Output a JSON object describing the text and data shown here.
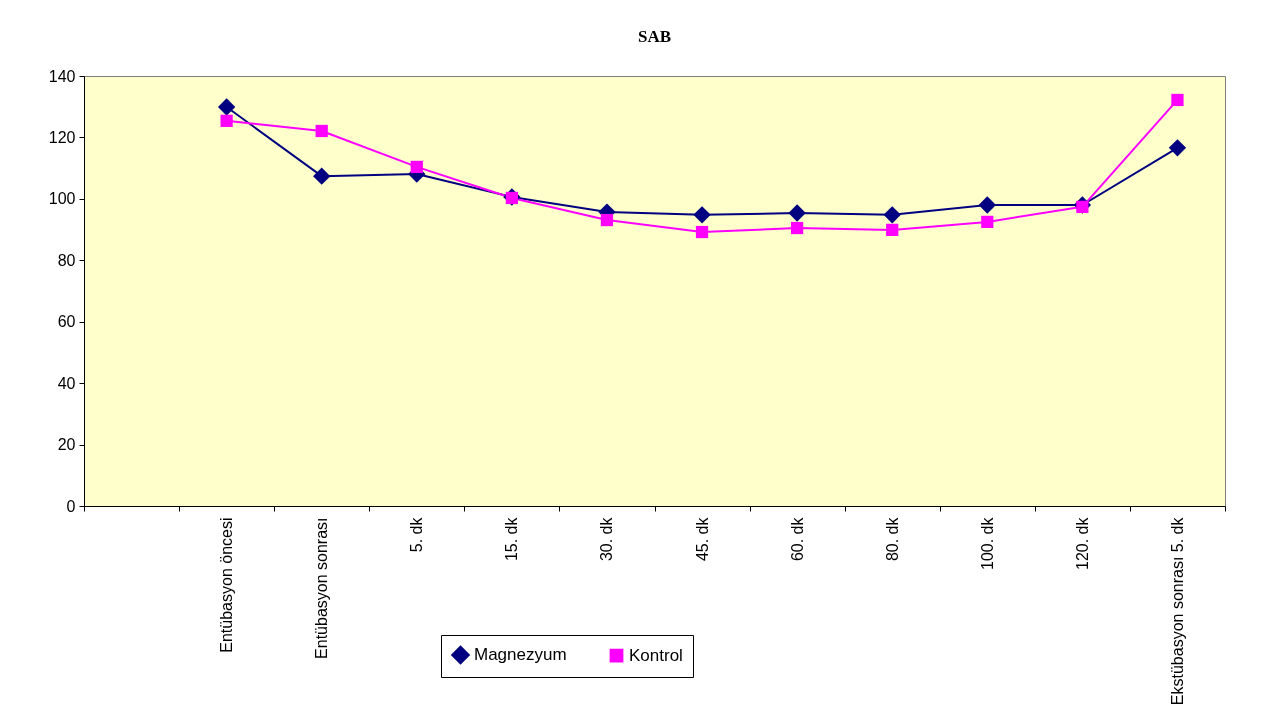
{
  "chart_data": {
    "type": "line",
    "title": "SAB",
    "categories": [
      null,
      "Entübasyon öncesi",
      "Entübasyon sonrası",
      "5. dk",
      "15. dk",
      "30. dk",
      "45. dk",
      "60. dk",
      "80. dk",
      "100. dk",
      "120. dk",
      "Ekstübasyon sonrası 5. dk"
    ],
    "series": [
      {
        "name": "Magnezyum",
        "color": "#000080",
        "marker": "diamond",
        "values": [
          null,
          129.9,
          107.4,
          108.1,
          100.6,
          95.7,
          94.8,
          95.4,
          94.8,
          98,
          98,
          116.6
        ]
      },
      {
        "name": "Kontrol",
        "color": "#ff00ff",
        "marker": "square",
        "values": [
          null,
          125.4,
          122.1,
          110.4,
          100.3,
          93.1,
          89.2,
          90.5,
          89.9,
          92.5,
          97.4,
          132.2
        ]
      }
    ],
    "ylim": [
      0,
      140
    ],
    "yticks": [
      0,
      20,
      40,
      60,
      80,
      100,
      120,
      140
    ],
    "grid": false,
    "legend": "bottom"
  }
}
